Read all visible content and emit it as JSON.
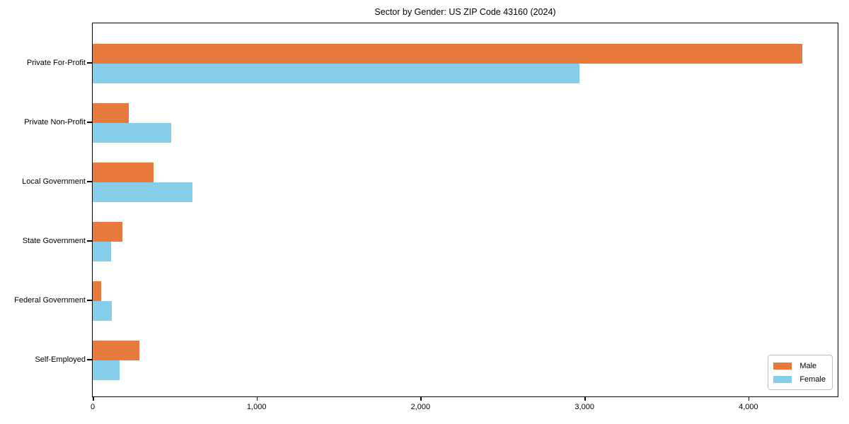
{
  "chart_data": {
    "type": "bar",
    "orientation": "horizontal",
    "title": "Sector by Gender: US ZIP Code 43160 (2024)",
    "categories": [
      "Private For-Profit",
      "Private Non-Profit",
      "Local Government",
      "State Government",
      "Federal Government",
      "Self-Employed"
    ],
    "series": [
      {
        "name": "Male",
        "color": "#e8793c",
        "values": [
          4330,
          220,
          370,
          180,
          50,
          285
        ]
      },
      {
        "name": "Female",
        "color": "#87ceeb",
        "values": [
          2970,
          480,
          610,
          110,
          115,
          165
        ]
      }
    ],
    "xlim": [
      0,
      4540
    ],
    "x_ticks": [
      {
        "value": 0,
        "label": "0"
      },
      {
        "value": 1000,
        "label": "1,000"
      },
      {
        "value": 2000,
        "label": "2,000"
      },
      {
        "value": 3000,
        "label": "3,000"
      },
      {
        "value": 4000,
        "label": "4,000"
      }
    ],
    "legend_position": "lower right",
    "grid": false,
    "axis_color": "#000000",
    "background_color": "#ffffff"
  }
}
